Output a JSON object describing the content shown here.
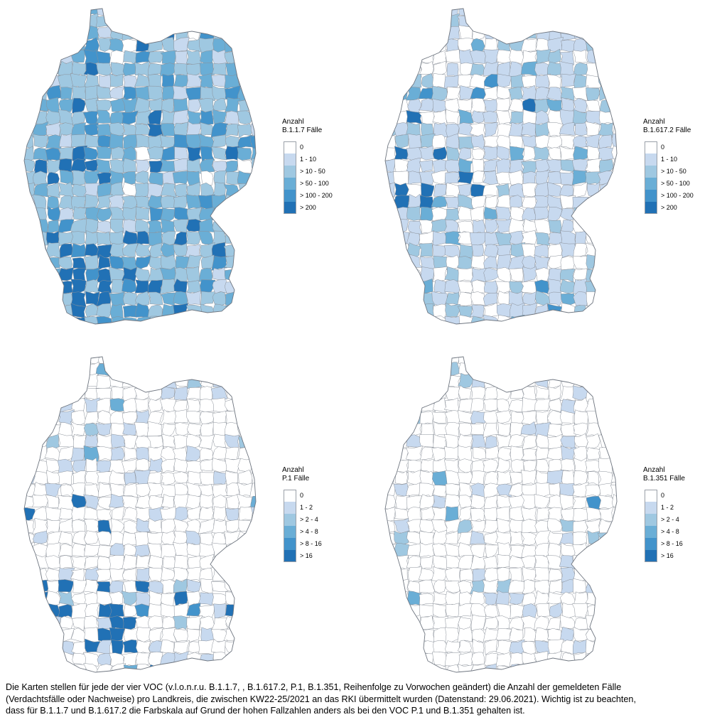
{
  "maps": [
    {
      "legend_title_line1": "Anzahl",
      "legend_title_line2": "B.1.1.7 Fälle",
      "classes": [
        {
          "label": "0",
          "color": "#ffffff"
        },
        {
          "label": "1 - 10",
          "color": "#c7d9ef"
        },
        {
          "label": "> 10 - 50",
          "color": "#9fc8e1"
        },
        {
          "label": "> 50 - 100",
          "color": "#6aaed6"
        },
        {
          "label": "> 100 - 200",
          "color": "#4293cb"
        },
        {
          "label": "> 200",
          "color": "#2171b5"
        }
      ],
      "distribution": [
        0.02,
        0.14,
        0.46,
        0.22,
        0.12,
        0.04
      ],
      "hotspot": "south"
    },
    {
      "legend_title_line1": "Anzahl",
      "legend_title_line2": "B.1.617.2 Fälle",
      "classes": [
        {
          "label": "0",
          "color": "#ffffff"
        },
        {
          "label": "1 - 10",
          "color": "#c7d9ef"
        },
        {
          "label": "> 10 - 50",
          "color": "#9fc8e1"
        },
        {
          "label": "> 50 - 100",
          "color": "#6aaed6"
        },
        {
          "label": "> 100 - 200",
          "color": "#4293cb"
        },
        {
          "label": "> 200",
          "color": "#2171b5"
        }
      ],
      "distribution": [
        0.38,
        0.4,
        0.17,
        0.03,
        0.015,
        0.005
      ],
      "hotspot": "west"
    },
    {
      "legend_title_line1": "Anzahl",
      "legend_title_line2": "P.1 Fälle",
      "classes": [
        {
          "label": "0",
          "color": "#ffffff"
        },
        {
          "label": "1 - 2",
          "color": "#c7d9ef"
        },
        {
          "label": "> 2 - 4",
          "color": "#9fc8e1"
        },
        {
          "label": "> 4 - 8",
          "color": "#6aaed6"
        },
        {
          "label": "> 8 - 16",
          "color": "#4293cb"
        },
        {
          "label": "> 16",
          "color": "#2171b5"
        }
      ],
      "distribution": [
        0.82,
        0.12,
        0.04,
        0.012,
        0.006,
        0.002
      ],
      "hotspot": "south"
    },
    {
      "legend_title_line1": "Anzahl",
      "legend_title_line2": "B.1.351 Fälle",
      "classes": [
        {
          "label": "0",
          "color": "#ffffff"
        },
        {
          "label": "1 - 2",
          "color": "#c7d9ef"
        },
        {
          "label": "> 2 - 4",
          "color": "#9fc8e1"
        },
        {
          "label": "> 4 - 8",
          "color": "#6aaed6"
        },
        {
          "label": "> 8 - 16",
          "color": "#4293cb"
        },
        {
          "label": "> 16",
          "color": "#2171b5"
        }
      ],
      "distribution": [
        0.88,
        0.08,
        0.03,
        0.007,
        0.002,
        0.001
      ],
      "hotspot": "none"
    }
  ],
  "caption": {
    "line1": "Die Karten stellen für jede der vier VOC (v.l.o.n.r.u. B.1.1.7, , B.1.617.2, P.1, B.1.351, Reihenfolge zu Vorwochen geändert) die Anzahl der gemeldeten Fälle",
    "line2": "(Verdachtsfälle oder Nachweise) pro Landkreis, die zwischen KW22-25/2021 an das RKI übermittelt wurden (Datenstand: 29.06.2021). Wichtig ist zu beachten,",
    "line3": "dass für B.1.1.7 und B.1.617.2 die Farbskala auf Grund der hohen Fallzahlen anders als bei den VOC P.1 und B.1.351 gehalten ist."
  }
}
